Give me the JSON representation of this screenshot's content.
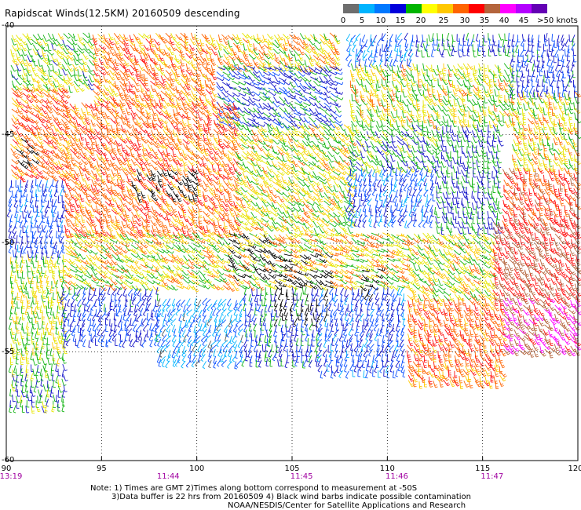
{
  "header": {
    "title": "Rapidscat Winds(12.5KM) 20160509 descending"
  },
  "color_scale": {
    "colors": [
      "#6e6e6e",
      "#00b4ff",
      "#0078ff",
      "#0000dc",
      "#00b400",
      "#ffff00",
      "#ffc800",
      "#ff6400",
      "#ff0000",
      "#b4643c",
      "#ff00ff",
      "#b400ff",
      "#6400b4"
    ],
    "labels": [
      "0",
      "5",
      "10",
      "15",
      "20",
      "25",
      "30",
      "35",
      "40",
      "45",
      ">50 knots"
    ]
  },
  "notes": {
    "line1": "Note: 1) Times are GMT 2)Times along bottom correspond to measurement at -50S",
    "line2": "3)Data buffer is 22 hrs from 20160509 4) Black wind barbs indicate possible contamination",
    "line3": "NOAA/NESDIS/Center for Satellite Applications and Research"
  },
  "chart_data": {
    "type": "map",
    "title": "Rapidscat Winds(12.5KM) 20160509 descending",
    "xlim": [
      90,
      120
    ],
    "ylim": [
      -60,
      -40
    ],
    "x_ticks": [
      90,
      95,
      100,
      105,
      110,
      115,
      120
    ],
    "x_tick_labels": [
      "90",
      "95",
      "100",
      "105",
      "110",
      "115",
      "120"
    ],
    "y_ticks": [
      -40,
      -45,
      -50,
      -55,
      -60
    ],
    "y_tick_labels": [
      "-40",
      "-45",
      "-50",
      "-55",
      "-60"
    ],
    "grid": true,
    "times": [
      {
        "lon": 90,
        "label": "13:19"
      },
      {
        "lon": 98.5,
        "label": "11:44"
      },
      {
        "lon": 105.5,
        "label": "11:45"
      },
      {
        "lon": 110.5,
        "label": "11:46"
      },
      {
        "lon": 115.5,
        "label": "11:47"
      }
    ],
    "wind_speed_units": "knots",
    "wind_regions": [
      {
        "lon": [
          90.2,
          94.5
        ],
        "lat": [
          -40.3,
          -42.8
        ],
        "speed": 24,
        "dir": 300
      },
      {
        "lon": [
          94.5,
          101.0
        ],
        "lat": [
          -40.3,
          -43.5
        ],
        "speed": 32,
        "dir": 300
      },
      {
        "lon": [
          101.0,
          107.5
        ],
        "lat": [
          -40.3,
          -41.8
        ],
        "speed": 28,
        "dir": 300
      },
      {
        "lon": [
          101.0,
          107.5
        ],
        "lat": [
          -41.8,
          -44.5
        ],
        "speed": 18,
        "dir": 320
      },
      {
        "lon": [
          108.0,
          111.5
        ],
        "lat": [
          -40.3,
          -41.7
        ],
        "speed": 12,
        "dir": 250
      },
      {
        "lon": [
          111.5,
          116.5
        ],
        "lat": [
          -40.3,
          -41.3
        ],
        "speed": 18,
        "dir": 270
      },
      {
        "lon": [
          116.5,
          120.0
        ],
        "lat": [
          -40.3,
          -43.0
        ],
        "speed": 16,
        "dir": 260
      },
      {
        "lon": [
          108.0,
          116.5
        ],
        "lat": [
          -41.7,
          -44.5
        ],
        "speed": 26,
        "dir": 290
      },
      {
        "lon": [
          116.5,
          120.0
        ],
        "lat": [
          -43.0,
          -46.5
        ],
        "speed": 27,
        "dir": 290
      },
      {
        "lon": [
          90.2,
          93.0
        ],
        "lat": [
          -42.8,
          -47.0
        ],
        "speed": 33,
        "dir": 310
      },
      {
        "lon": [
          93.0,
          102.0
        ],
        "lat": [
          -43.5,
          -49.5
        ],
        "speed": 33,
        "dir": 300
      },
      {
        "lon": [
          102.0,
          108.0
        ],
        "lat": [
          -44.5,
          -49.5
        ],
        "speed": 26,
        "dir": 310
      },
      {
        "lon": [
          108.0,
          112.5
        ],
        "lat": [
          -44.5,
          -46.5
        ],
        "speed": 22,
        "dir": 300
      },
      {
        "lon": [
          108.0,
          112.5
        ],
        "lat": [
          -46.5,
          -49.0
        ],
        "speed": 13,
        "dir": 250
      },
      {
        "lon": [
          112.5,
          116.0
        ],
        "lat": [
          -44.5,
          -49.5
        ],
        "speed": 20,
        "dir": 280
      },
      {
        "lon": [
          116.0,
          120.0
        ],
        "lat": [
          -46.5,
          -49.0
        ],
        "speed": 37,
        "dir": 290
      },
      {
        "lon": [
          90.2,
          93.0
        ],
        "lat": [
          -47.0,
          -50.5
        ],
        "speed": 14,
        "dir": 260
      },
      {
        "lon": [
          93.0,
          104.0
        ],
        "lat": [
          -49.5,
          -52.0
        ],
        "speed": 27,
        "dir": 320
      },
      {
        "lon": [
          104.0,
          111.0
        ],
        "lat": [
          -49.5,
          -52.0
        ],
        "speed": 28,
        "dir": 330
      },
      {
        "lon": [
          111.0,
          115.5
        ],
        "lat": [
          -49.5,
          -52.5
        ],
        "speed": 26,
        "dir": 310
      },
      {
        "lon": [
          115.5,
          120.0
        ],
        "lat": [
          -49.0,
          -52.5
        ],
        "speed": 40,
        "dir": 300
      },
      {
        "lon": [
          116.0,
          120.0
        ],
        "lat": [
          -52.5,
          -55.0
        ],
        "speed": 44,
        "dir": 300
      },
      {
        "lon": [
          90.2,
          93.0
        ],
        "lat": [
          -50.5,
          -55.5
        ],
        "speed": 25,
        "dir": 270
      },
      {
        "lon": [
          93.0,
          98.0
        ],
        "lat": [
          -52.0,
          -54.5
        ],
        "speed": 16,
        "dir": 250
      },
      {
        "lon": [
          98.0,
          102.5
        ],
        "lat": [
          -52.5,
          -55.5
        ],
        "speed": 9,
        "dir": 240
      },
      {
        "lon": [
          102.5,
          106.5
        ],
        "lat": [
          -52.0,
          -55.5
        ],
        "speed": 18,
        "dir": 260
      },
      {
        "lon": [
          106.5,
          111.0
        ],
        "lat": [
          -52.0,
          -56.0
        ],
        "speed": 14,
        "dir": 250
      },
      {
        "lon": [
          111.0,
          116.0
        ],
        "lat": [
          -52.5,
          -56.5
        ],
        "speed": 33,
        "dir": 290
      },
      {
        "lon": [
          90.2,
          93.0
        ],
        "lat": [
          -55.5,
          -57.5
        ],
        "speed": 21,
        "dir": 270
      }
    ],
    "contaminated_regions": [
      {
        "lon": [
          96.5,
          100.0
        ],
        "lat": [
          -46.5,
          -48.0
        ]
      },
      {
        "lon": [
          101.5,
          104.0
        ],
        "lat": [
          -49.5,
          -51.5
        ]
      },
      {
        "lon": [
          104.0,
          107.0
        ],
        "lat": [
          -50.5,
          -53.5
        ]
      },
      {
        "lon": [
          108.5,
          109.5
        ],
        "lat": [
          -51.0,
          -52.5
        ]
      },
      {
        "lon": [
          90.3,
          91.5
        ],
        "lat": [
          -45.0,
          -46.5
        ]
      }
    ]
  }
}
